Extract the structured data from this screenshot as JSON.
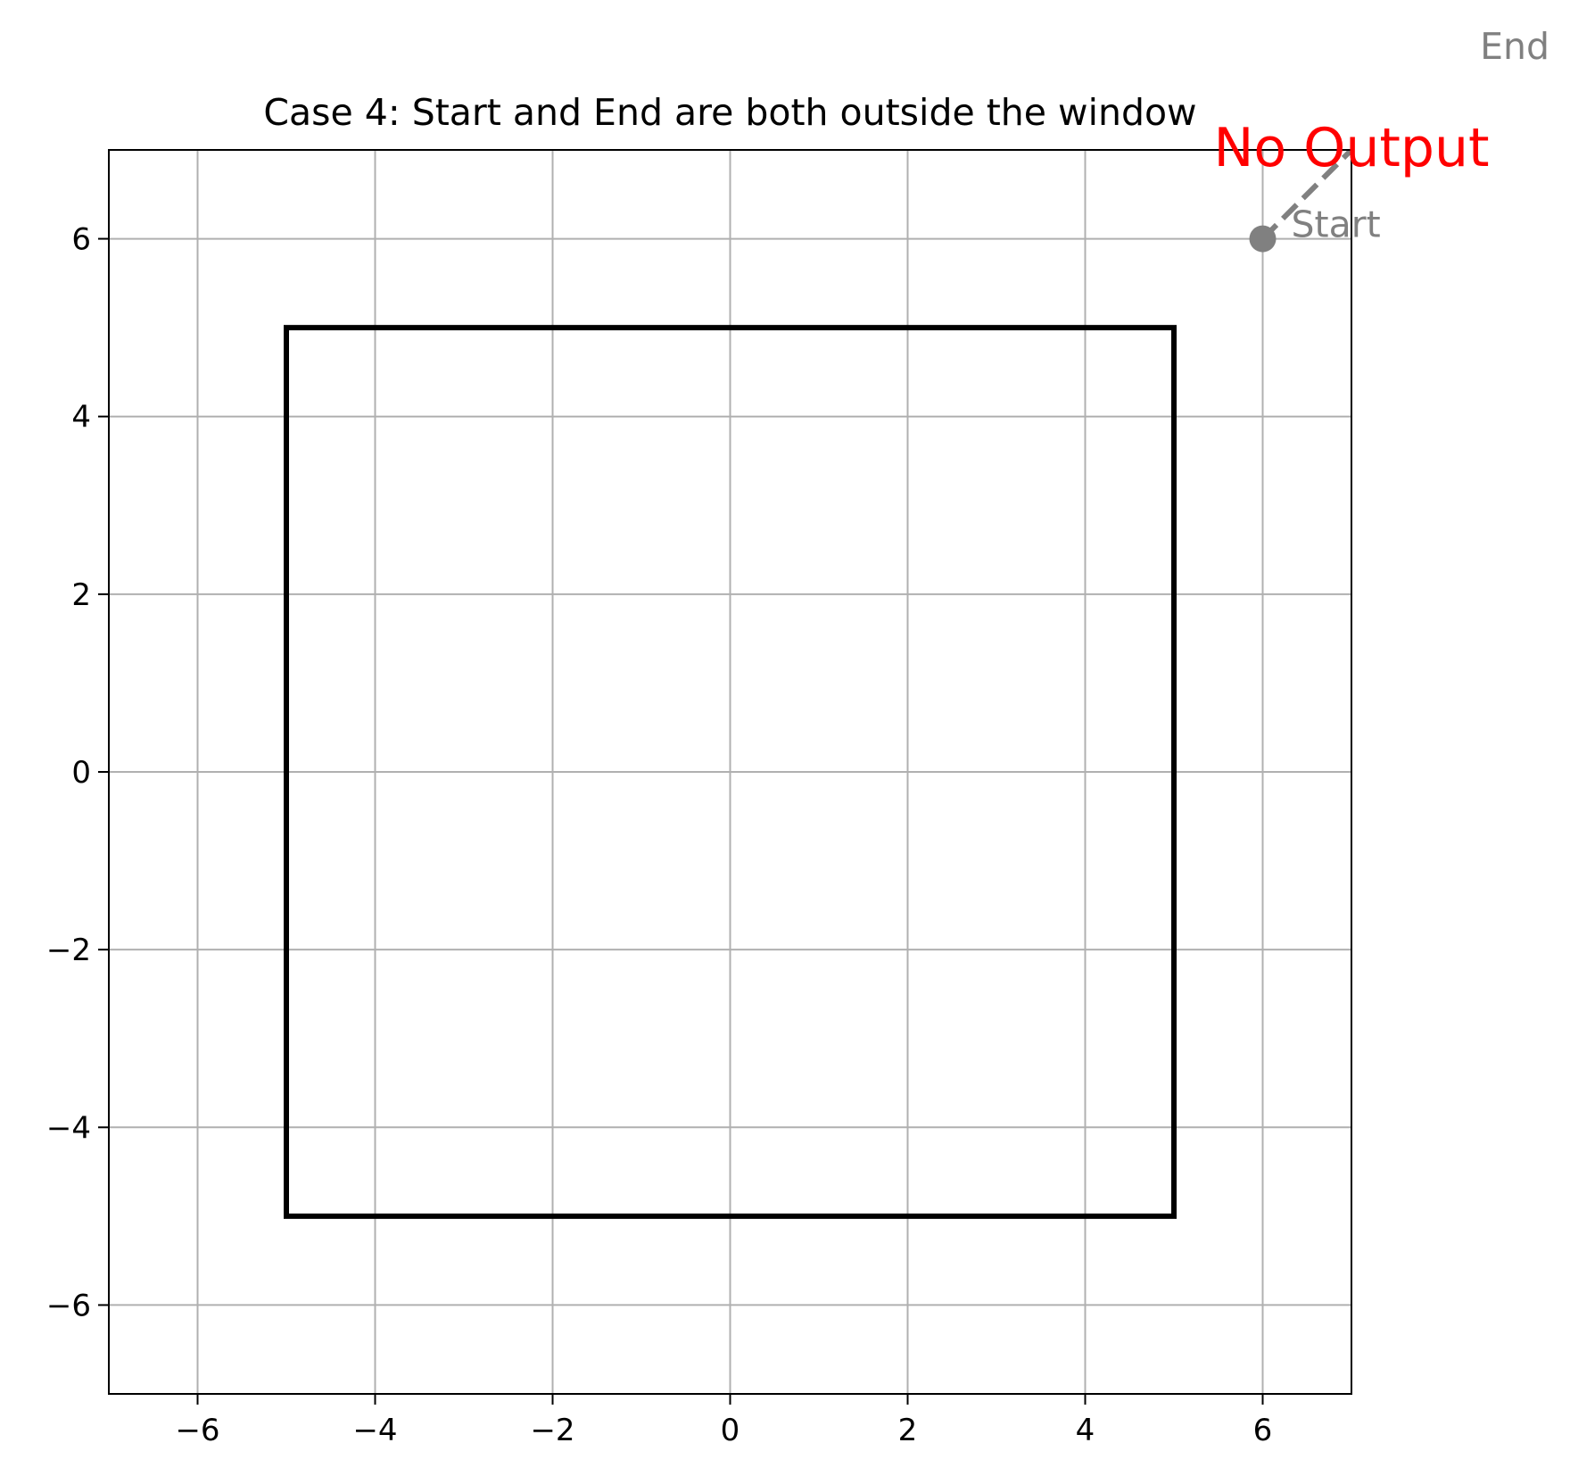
{
  "chart_data": {
    "type": "line",
    "title": "Case 4: Start and End are both outside the window",
    "xlabel": "",
    "ylabel": "",
    "xlim": [
      -7,
      7
    ],
    "ylim": [
      -7,
      7
    ],
    "xticks": [
      -6,
      -4,
      -2,
      0,
      2,
      4,
      6
    ],
    "yticks": [
      -6,
      -4,
      -2,
      0,
      2,
      4,
      6
    ],
    "grid": true,
    "window": {
      "xmin": -5,
      "xmax": 5,
      "ymin": -5,
      "ymax": 5,
      "color": "#000000"
    },
    "segment": {
      "start": {
        "x": 6,
        "y": 6,
        "label": "Start"
      },
      "end": {
        "x": 8,
        "y": 8,
        "label": "End"
      },
      "style": "dashed",
      "color": "#808080"
    },
    "annotation": {
      "text": "No Output",
      "x": 7,
      "y": 7,
      "color": "#ff0000"
    }
  }
}
